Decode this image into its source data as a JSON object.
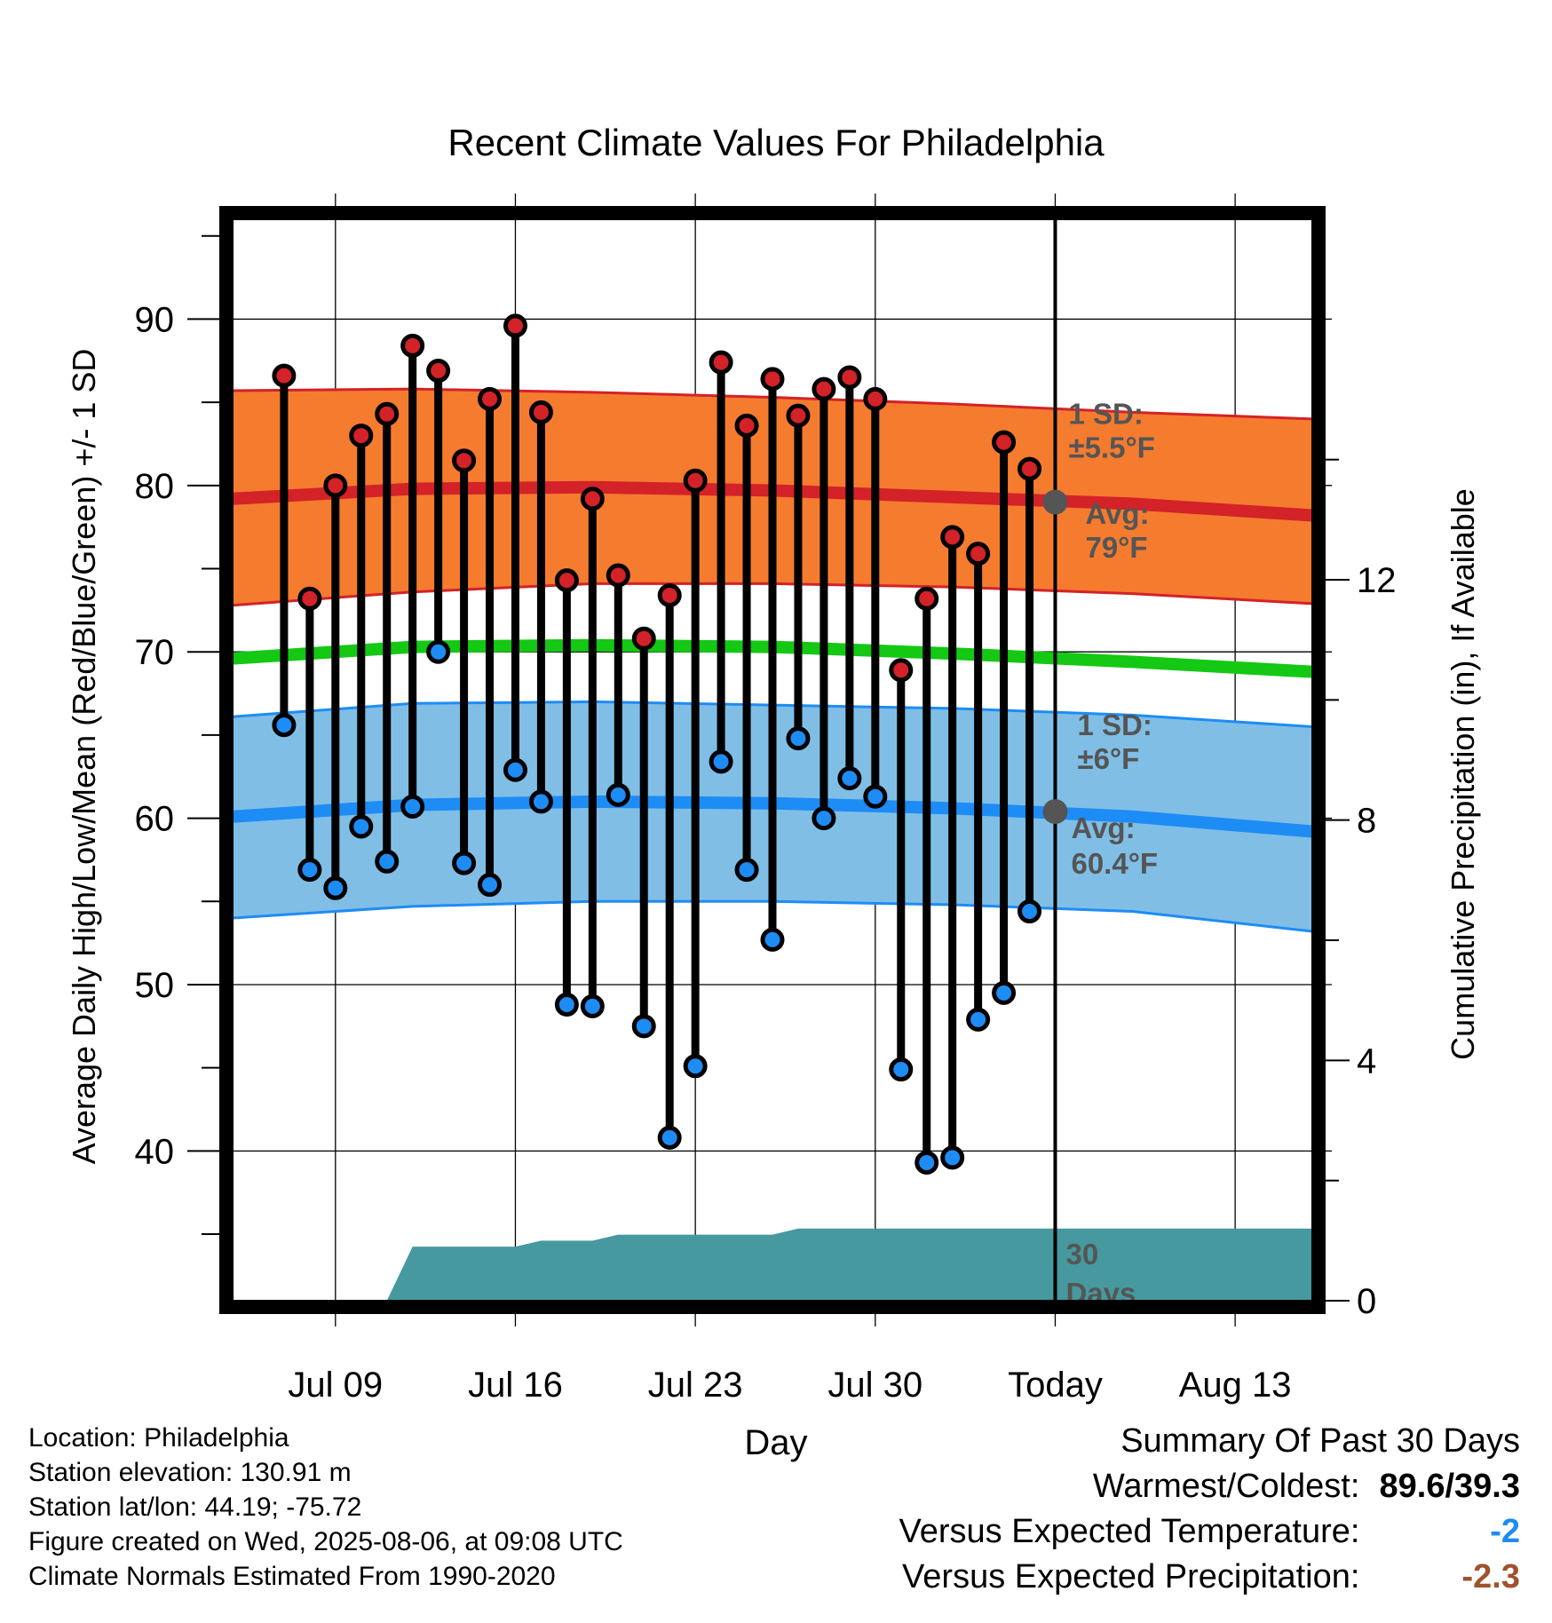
{
  "chart_data": {
    "type": "line",
    "title": "Recent Climate Values For Philadelphia",
    "xlabel": "Day",
    "ylabel": "Average Daily High/Low/Mean (Red/Blue/Green) +/- 1 SD",
    "y2label": "Cumulative Precipitation (in), If Available",
    "ylim": [
      31,
      96
    ],
    "y2lim": [
      0,
      18
    ],
    "yticks": [
      "40",
      "50",
      "60",
      "70",
      "80",
      "90"
    ],
    "y2ticks": [
      "0",
      "4",
      "8",
      "12"
    ],
    "xlim": [
      "2025-07-05",
      "2025-08-16"
    ],
    "xticks": [
      {
        "date": "2025-07-09",
        "label": "Jul 09"
      },
      {
        "date": "2025-07-16",
        "label": "Jul 16"
      },
      {
        "date": "2025-07-23",
        "label": "Jul 23"
      },
      {
        "date": "2025-07-30",
        "label": "Jul 30"
      },
      {
        "date": "2025-08-06",
        "label": "Today"
      },
      {
        "date": "2025-08-13",
        "label": "Aug 13"
      }
    ],
    "today": "2025-08-06",
    "grid": true,
    "observed": {
      "dates": [
        "2025-07-07",
        "2025-07-08",
        "2025-07-09",
        "2025-07-10",
        "2025-07-11",
        "2025-07-12",
        "2025-07-13",
        "2025-07-14",
        "2025-07-15",
        "2025-07-16",
        "2025-07-17",
        "2025-07-18",
        "2025-07-19",
        "2025-07-20",
        "2025-07-21",
        "2025-07-22",
        "2025-07-23",
        "2025-07-24",
        "2025-07-25",
        "2025-07-26",
        "2025-07-27",
        "2025-07-28",
        "2025-07-29",
        "2025-07-30",
        "2025-07-31",
        "2025-08-01",
        "2025-08-02",
        "2025-08-03",
        "2025-08-04",
        "2025-08-05"
      ],
      "high": [
        86.6,
        73.2,
        80.0,
        83.0,
        84.3,
        88.4,
        86.9,
        81.5,
        85.2,
        89.6,
        84.4,
        74.3,
        79.2,
        74.6,
        70.8,
        73.4,
        80.3,
        87.4,
        83.6,
        86.4,
        84.2,
        85.8,
        86.5,
        85.2,
        68.9,
        73.2,
        76.9,
        75.9,
        82.6,
        81.0
      ],
      "low": [
        65.6,
        56.9,
        55.8,
        59.5,
        57.4,
        60.7,
        70.0,
        57.3,
        56.0,
        62.9,
        61.0,
        48.8,
        48.7,
        61.4,
        47.5,
        40.8,
        45.1,
        63.4,
        56.9,
        52.7,
        64.8,
        60.0,
        62.4,
        61.3,
        44.9,
        39.3,
        39.6,
        47.9,
        49.5,
        54.4
      ]
    },
    "normals": {
      "dates": [
        "2025-07-05",
        "2025-07-12",
        "2025-07-19",
        "2025-07-26",
        "2025-08-02",
        "2025-08-09",
        "2025-08-16"
      ],
      "high_mean": [
        79.2,
        79.8,
        79.9,
        79.7,
        79.3,
        78.9,
        78.2
      ],
      "high_upper": [
        85.7,
        85.8,
        85.6,
        85.3,
        84.9,
        84.4,
        84.0
      ],
      "high_lower": [
        72.8,
        73.6,
        74.1,
        74.1,
        73.9,
        73.5,
        72.9
      ],
      "mean": [
        69.6,
        70.3,
        70.4,
        70.3,
        69.9,
        69.4,
        68.8
      ],
      "low_mean": [
        60.1,
        60.8,
        61.0,
        60.9,
        60.6,
        60.1,
        59.2
      ],
      "low_upper": [
        66.1,
        66.9,
        67.0,
        66.8,
        66.6,
        66.2,
        65.5
      ],
      "low_lower": [
        54.0,
        54.7,
        55.0,
        55.0,
        54.8,
        54.4,
        53.2
      ]
    },
    "precipitation": {
      "dates": [
        "2025-07-07",
        "2025-07-10",
        "2025-07-11",
        "2025-07-12",
        "2025-07-13",
        "2025-07-14",
        "2025-07-16",
        "2025-07-17",
        "2025-07-18",
        "2025-07-19",
        "2025-07-20",
        "2025-07-21",
        "2025-07-24",
        "2025-07-25",
        "2025-07-26",
        "2025-07-27",
        "2025-08-05",
        "2025-08-06",
        "2025-08-16"
      ],
      "values": [
        0.0,
        0.0,
        0.0,
        0.9,
        0.9,
        0.9,
        0.9,
        1.0,
        1.0,
        1.0,
        1.1,
        1.1,
        1.1,
        1.1,
        1.1,
        1.2,
        1.2,
        1.2,
        1.2
      ]
    },
    "colors": {
      "high_band": "#f57b2f",
      "high_line": "#d32228",
      "mean_line": "#14c814",
      "low_band": "#80bee6",
      "low_line": "#1e8cf5",
      "precip": "#46999f",
      "annotation": "#555555"
    },
    "annotations": {
      "high_sd": [
        "1 SD:",
        "±5.5°F"
      ],
      "high_avg": [
        "Avg:",
        "79°F"
      ],
      "low_sd": [
        "1 SD:",
        "±6°F"
      ],
      "low_avg": [
        "Avg:",
        "60.4°F"
      ],
      "days_window": [
        "30",
        "Days"
      ],
      "today_high_avg": 79.0,
      "today_low_avg": 60.4
    }
  },
  "footer": {
    "lines": [
      "Location: Philadelphia",
      "Station elevation: 130.91 m",
      "Station lat/lon: 44.19; -75.72",
      "Figure created on Wed, 2025-08-06, at 09:08 UTC",
      "Climate Normals Estimated From 1990-2020"
    ]
  },
  "summary": {
    "heading": "Summary Of Past 30 Days",
    "warmest_coldest_label": "Warmest/Coldest:",
    "warmest_coldest_value": "89.6/39.3",
    "temp_label": "Versus Expected Temperature:",
    "temp_value": "-2",
    "temp_color": "#1e8cf5",
    "precip_label": "Versus Expected Precipitation:",
    "precip_value": "-2.3",
    "precip_color": "#a0522d"
  }
}
